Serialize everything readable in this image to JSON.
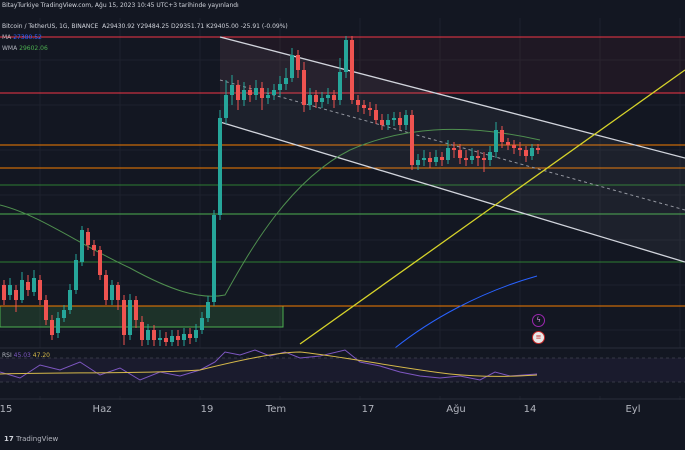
{
  "header": {
    "line1": "BitayTurkiye TradingView.com, Ağu 15, 2023 10:45 UTC+3 tarihinde yayınlandı",
    "symbol": "Bitcoin / TetherUS, 1G, BINANCE",
    "ohlc": "A29430.92  Y29484.25  D29351.71  K29405.00  -25.91 (-0.09%)"
  },
  "indicators": {
    "ma": {
      "label": "MA",
      "value": "27380.52"
    },
    "wma": {
      "label": "WMA",
      "value": "29602.06"
    }
  },
  "rsi": {
    "label": "RSI",
    "v1": "45.03",
    "v2": "47.20"
  },
  "x_axis": {
    "labels": [
      "15",
      "Haz",
      "19",
      "Tem",
      "17",
      "Ağu",
      "14",
      "Eyl"
    ]
  },
  "footer": {
    "brand": "TradingView"
  },
  "colors": {
    "background": "#131722",
    "up": "#26a69a",
    "down": "#ef5350",
    "channel": "#d1d4dc",
    "trendline": "#d6d32a",
    "support_red": "#f23645",
    "support_orange": "#f57c00",
    "support_green": "#4caf50",
    "wma_line": "#2962ff",
    "rsi_line": "#7e57c2",
    "rsi_ma": "#d6b94a"
  }
}
